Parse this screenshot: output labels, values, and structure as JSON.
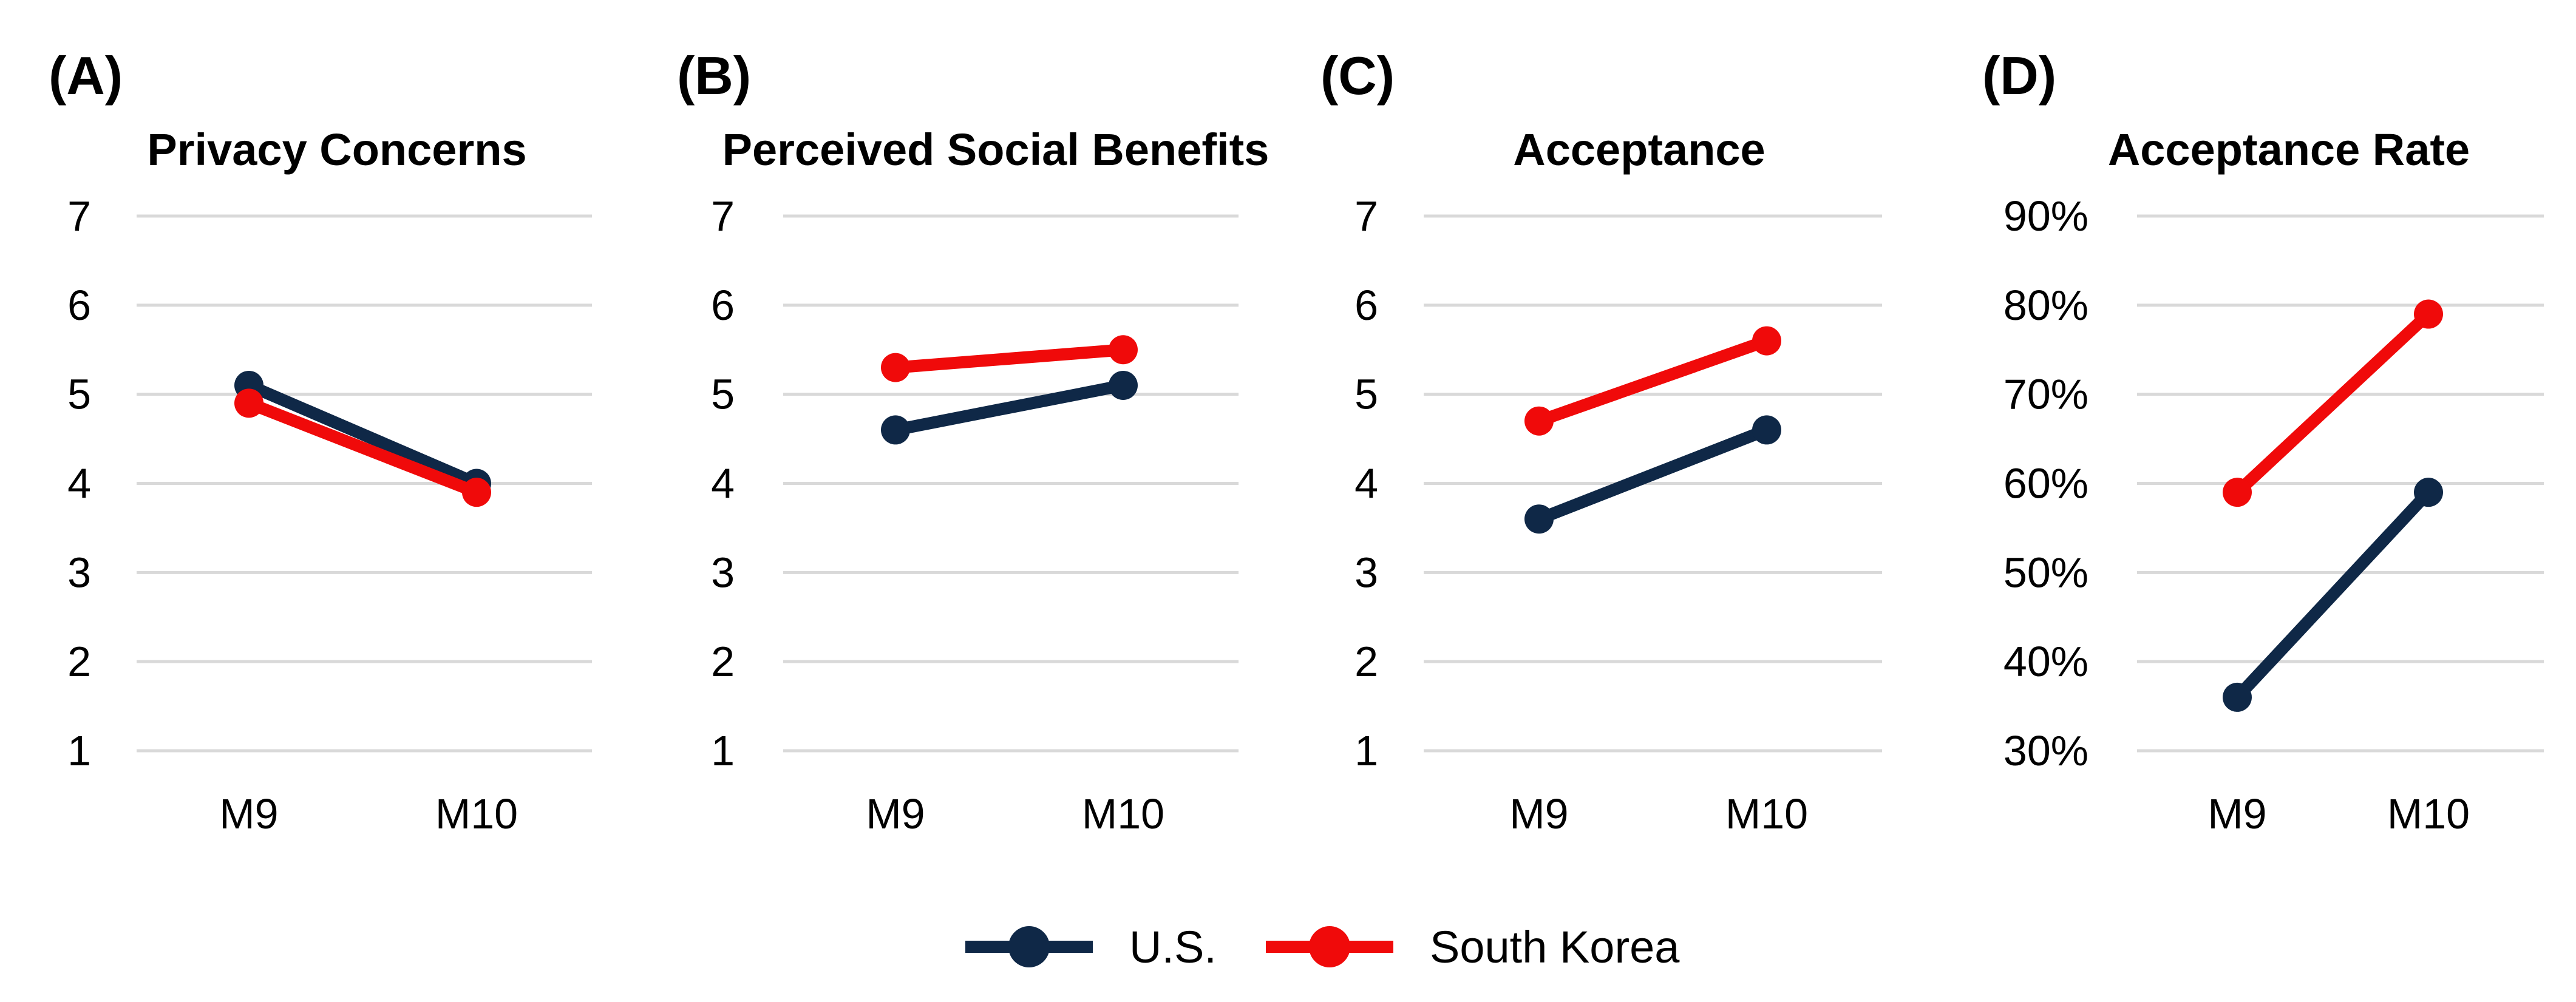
{
  "colors": {
    "us": "#0f2847",
    "korea": "#f00a0a",
    "grid": "#d9d9d9"
  },
  "legend": {
    "us": "U.S.",
    "korea": "South Korea"
  },
  "chart_data": [
    {
      "type": "line",
      "panel": "(A)",
      "title": "Privacy Concerns",
      "categories": [
        "M9",
        "M10"
      ],
      "ylim": [
        1,
        7
      ],
      "yticks": [
        1,
        2,
        3,
        4,
        5,
        6,
        7
      ],
      "ytick_labels": [
        "1",
        "2",
        "3",
        "4",
        "5",
        "6",
        "7"
      ],
      "grid": true,
      "series": [
        {
          "name": "U.S.",
          "color": "#0f2847",
          "values": [
            5.1,
            4.0
          ]
        },
        {
          "name": "South Korea",
          "color": "#f00a0a",
          "values": [
            4.9,
            3.9
          ]
        }
      ]
    },
    {
      "type": "line",
      "panel": "(B)",
      "title": "Perceived Social Benefits",
      "categories": [
        "M9",
        "M10"
      ],
      "ylim": [
        1,
        7
      ],
      "yticks": [
        1,
        2,
        3,
        4,
        5,
        6,
        7
      ],
      "ytick_labels": [
        "1",
        "2",
        "3",
        "4",
        "5",
        "6",
        "7"
      ],
      "grid": true,
      "series": [
        {
          "name": "U.S.",
          "color": "#0f2847",
          "values": [
            4.6,
            5.1
          ]
        },
        {
          "name": "South Korea",
          "color": "#f00a0a",
          "values": [
            5.3,
            5.5
          ]
        }
      ]
    },
    {
      "type": "line",
      "panel": "(C)",
      "title": "Acceptance",
      "categories": [
        "M9",
        "M10"
      ],
      "ylim": [
        1,
        7
      ],
      "yticks": [
        1,
        2,
        3,
        4,
        5,
        6,
        7
      ],
      "ytick_labels": [
        "1",
        "2",
        "3",
        "4",
        "5",
        "6",
        "7"
      ],
      "grid": true,
      "series": [
        {
          "name": "U.S.",
          "color": "#0f2847",
          "values": [
            3.6,
            4.6
          ]
        },
        {
          "name": "South Korea",
          "color": "#f00a0a",
          "values": [
            4.7,
            5.6
          ]
        }
      ]
    },
    {
      "type": "line",
      "panel": "(D)",
      "title": "Acceptance Rate",
      "categories": [
        "M9",
        "M10"
      ],
      "ylim": [
        30,
        90
      ],
      "yticks": [
        30,
        40,
        50,
        60,
        70,
        80,
        90
      ],
      "ytick_labels": [
        "30%",
        "40%",
        "50%",
        "60%",
        "70%",
        "80%",
        "90%"
      ],
      "grid": true,
      "series": [
        {
          "name": "U.S.",
          "color": "#0f2847",
          "values": [
            36,
            59
          ]
        },
        {
          "name": "South Korea",
          "color": "#f00a0a",
          "values": [
            59,
            79
          ]
        }
      ]
    }
  ]
}
